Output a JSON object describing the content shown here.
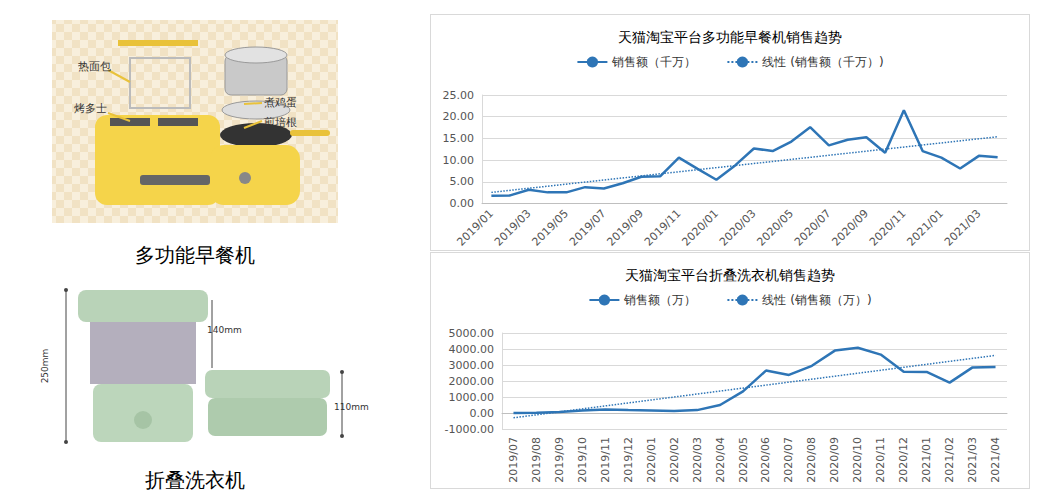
{
  "products": [
    {
      "caption": "多功能早餐机",
      "callouts": [
        "热面包",
        "烤多士",
        "煮鸡蛋",
        "煎培根"
      ]
    },
    {
      "caption": "折叠洗衣机",
      "dimensions": [
        "250mm",
        "140mm",
        "110mm"
      ]
    }
  ],
  "chart_data": [
    {
      "type": "line",
      "title": "天猫淘宝平台多功能早餐机销售趋势",
      "categories": [
        "2019/01",
        null,
        "2019/03",
        null,
        "2019/05",
        null,
        "2019/07",
        null,
        "2019/09",
        null,
        "2019/11",
        null,
        "2020/01",
        null,
        "2020/03",
        null,
        "2020/05",
        null,
        "2020/07",
        null,
        "2020/09",
        null,
        "2020/11",
        null,
        "2021/01",
        null,
        "2021/03",
        null
      ],
      "series": [
        {
          "name": "销售额（千万）",
          "color": "#2e75b6",
          "line_style": "solid",
          "values": [
            1.8,
            1.9,
            3.2,
            2.6,
            2.6,
            3.8,
            3.5,
            4.7,
            6.2,
            6.3,
            10.6,
            8.0,
            5.5,
            8.8,
            12.7,
            12.1,
            14.3,
            17.6,
            13.4,
            14.7,
            15.3,
            11.7,
            21.5,
            12.1,
            10.6,
            8.1,
            11.0,
            10.7
          ]
        },
        {
          "name": "线性 (销售额（千万）)",
          "color": "#2e75b6",
          "line_style": "dotted",
          "values": [
            2.6,
            null,
            null,
            null,
            null,
            null,
            null,
            null,
            null,
            null,
            null,
            null,
            null,
            null,
            null,
            null,
            null,
            null,
            null,
            null,
            null,
            null,
            null,
            null,
            null,
            null,
            null,
            15.4
          ]
        }
      ],
      "ylim": [
        0,
        25
      ],
      "yticks": [
        {
          "value": 0,
          "label": "0.00"
        },
        {
          "value": 5,
          "label": "5.00"
        },
        {
          "value": 10,
          "label": "10.00"
        },
        {
          "value": 15,
          "label": "15.00"
        },
        {
          "value": 20,
          "label": "20.00"
        },
        {
          "value": 25,
          "label": "25.00"
        }
      ],
      "grid": true,
      "legend": "top"
    },
    {
      "type": "line",
      "title": "天猫淘宝平台折叠洗衣机销售趋势",
      "categories": [
        "2019/07",
        "2019/08",
        "2019/09",
        "2019/10",
        "2019/11",
        "2019/12",
        "2020/01",
        "2020/02",
        "2020/03",
        "2020/04",
        "2020/05",
        "2020/06",
        "2020/07",
        "2020/08",
        "2020/09",
        "2020/10",
        "2020/11",
        "2020/12",
        "2021/01",
        "2021/02",
        "2021/03",
        "2021/04"
      ],
      "series": [
        {
          "name": "销售额（万）",
          "color": "#2e75b6",
          "line_style": "solid",
          "values": [
            0,
            10,
            60,
            150,
            220,
            180,
            160,
            120,
            180,
            500,
            1350,
            2650,
            2380,
            2950,
            3900,
            4080,
            3650,
            2580,
            2570,
            1900,
            2850,
            2870
          ]
        },
        {
          "name": "线性 (销售额（万）)",
          "color": "#2e75b6",
          "line_style": "dotted",
          "values": [
            -300,
            null,
            null,
            null,
            null,
            null,
            null,
            null,
            null,
            null,
            null,
            null,
            null,
            null,
            null,
            null,
            null,
            null,
            null,
            null,
            null,
            3600
          ]
        }
      ],
      "ylim": [
        -1000,
        5000
      ],
      "yticks": [
        {
          "value": -1000,
          "label": "-1000.00"
        },
        {
          "value": 0,
          "label": "0.00"
        },
        {
          "value": 1000,
          "label": "1000.00"
        },
        {
          "value": 2000,
          "label": "2000.00"
        },
        {
          "value": 3000,
          "label": "3000.00"
        },
        {
          "value": 4000,
          "label": "4000.00"
        },
        {
          "value": 5000,
          "label": "5000.00"
        }
      ],
      "grid": true,
      "legend": "top"
    }
  ]
}
